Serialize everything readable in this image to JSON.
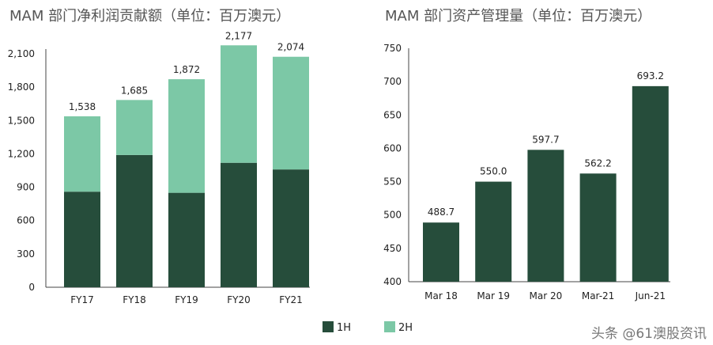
{
  "chart_data": [
    {
      "type": "bar",
      "stacked": true,
      "title": "MAM 部门净利润贡献额（单位：百万澳元）",
      "categories": [
        "FY17",
        "FY18",
        "FY19",
        "FY20",
        "FY21"
      ],
      "series": [
        {
          "name": "1H",
          "values": [
            860,
            1190,
            850,
            1120,
            1060
          ],
          "color": "#264d3b"
        },
        {
          "name": "2H",
          "values": [
            678,
            495,
            1022,
            1057,
            1014
          ],
          "color": "#7cc8a6"
        }
      ],
      "totals": [
        "1,538",
        "1,685",
        "1,872",
        "2,177",
        "2,074"
      ],
      "ylim": [
        0,
        2300
      ],
      "yticks": [
        0,
        300,
        600,
        900,
        1200,
        1500,
        1800,
        2100
      ],
      "ytick_labels": [
        "0",
        "300",
        "600",
        "900",
        "1,200",
        "1,500",
        "1,800",
        "2,100"
      ],
      "legend": "bottom"
    },
    {
      "type": "bar",
      "title": "MAM 部门资产管理量（单位：百万澳元）",
      "categories": [
        "Mar 18",
        "Mar 19",
        "Mar 20",
        "Mar-21",
        "Jun-21"
      ],
      "values": [
        488.7,
        550.0,
        597.7,
        562.2,
        693.2
      ],
      "value_labels": [
        "488.7",
        "550.0",
        "597.7",
        "562.2",
        "693.2"
      ],
      "color": "#264d3b",
      "ylim": [
        400,
        750
      ],
      "yticks": [
        400,
        450,
        500,
        550,
        600,
        650,
        700,
        750
      ],
      "ytick_labels": [
        "400",
        "450",
        "500",
        "550",
        "600",
        "650",
        "700",
        "750"
      ]
    }
  ],
  "legend": [
    {
      "label": "1H",
      "color": "#264d3b"
    },
    {
      "label": "2H",
      "color": "#7cc8a6"
    }
  ],
  "watermark": "头条 @61澳股资讯"
}
